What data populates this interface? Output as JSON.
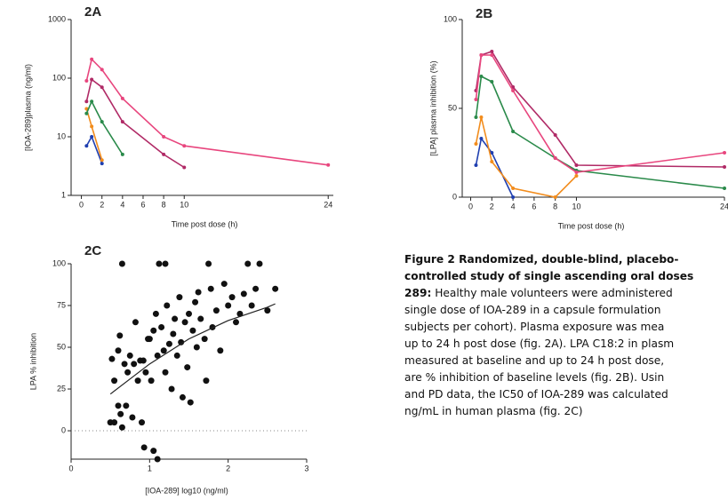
{
  "chart_data": [
    {
      "type": "line",
      "title": "2A",
      "xlabel": "Time post dose (h)",
      "ylabel": "[IOA-289]plasma (ng/ml)",
      "log_y": true,
      "xlim": [
        -1,
        24.5
      ],
      "ylim": [
        1,
        1000
      ],
      "xticks": [
        0,
        2,
        4,
        6,
        8,
        10,
        24
      ],
      "yticks": [
        1,
        10,
        100,
        1000
      ],
      "x": [
        0.5,
        1,
        2,
        4,
        8,
        10,
        24
      ],
      "series": [
        {
          "color": "#1f3fb0",
          "values": [
            7,
            10,
            3.5,
            null,
            null,
            null,
            null
          ]
        },
        {
          "color": "#f28c1c",
          "values": [
            30,
            15,
            4,
            null,
            null,
            null,
            null
          ]
        },
        {
          "color": "#2a8a4a",
          "values": [
            25,
            40,
            18,
            5,
            null,
            null,
            null
          ]
        },
        {
          "color": "#b02a66",
          "values": [
            40,
            95,
            70,
            18,
            5,
            3,
            null
          ]
        },
        {
          "color": "#e8467e",
          "values": [
            90,
            210,
            140,
            45,
            10,
            7,
            3.3
          ]
        }
      ]
    },
    {
      "type": "line",
      "title": "2B",
      "xlabel": "Time post dose (h)",
      "ylabel": "[LPA] plasma inhibition (%)",
      "log_y": false,
      "xlim": [
        -0.8,
        24
      ],
      "ylim": [
        0,
        100
      ],
      "xticks": [
        0,
        2,
        4,
        6,
        8,
        10,
        24
      ],
      "yticks": [
        0,
        50,
        100
      ],
      "x": [
        0.5,
        1,
        2,
        4,
        8,
        10,
        24
      ],
      "series": [
        {
          "color": "#1f3fb0",
          "values": [
            18,
            33,
            25,
            0,
            null,
            null,
            null
          ]
        },
        {
          "color": "#f28c1c",
          "values": [
            30,
            45,
            20,
            5,
            0,
            12,
            null
          ]
        },
        {
          "color": "#2a8a4a",
          "values": [
            45,
            68,
            65,
            37,
            22,
            15,
            5
          ]
        },
        {
          "color": "#b02a66",
          "values": [
            60,
            80,
            82,
            62,
            35,
            18,
            17
          ]
        },
        {
          "color": "#e8467e",
          "values": [
            55,
            80,
            80,
            60,
            22,
            14,
            25
          ]
        }
      ]
    },
    {
      "type": "scatter",
      "title": "2C",
      "xlabel": "[IOA-289] log10 (ng/ml)",
      "ylabel": "LPA % inhibition",
      "xlim": [
        0,
        3
      ],
      "ylim": [
        -17,
        100
      ],
      "xticks": [
        0,
        1,
        2,
        3
      ],
      "yticks": [
        0,
        25,
        50,
        75,
        100
      ],
      "color": "#111111",
      "x": [
        0.5,
        0.52,
        0.55,
        0.55,
        0.6,
        0.6,
        0.62,
        0.63,
        0.65,
        0.65,
        0.68,
        0.7,
        0.72,
        0.75,
        0.78,
        0.8,
        0.82,
        0.85,
        0.88,
        0.9,
        0.92,
        0.93,
        0.95,
        0.98,
        1.0,
        1.02,
        1.05,
        1.05,
        1.08,
        1.1,
        1.1,
        1.12,
        1.15,
        1.18,
        1.2,
        1.2,
        1.22,
        1.25,
        1.28,
        1.3,
        1.32,
        1.35,
        1.38,
        1.4,
        1.42,
        1.45,
        1.48,
        1.5,
        1.52,
        1.55,
        1.58,
        1.6,
        1.62,
        1.65,
        1.7,
        1.72,
        1.75,
        1.78,
        1.8,
        1.85,
        1.9,
        1.95,
        2.0,
        2.05,
        2.1,
        2.15,
        2.2,
        2.25,
        2.3,
        2.35,
        2.4,
        2.5,
        2.6
      ],
      "y": [
        5,
        43,
        30,
        5,
        48,
        15,
        57,
        10,
        2,
        100,
        40,
        15,
        35,
        45,
        8,
        40,
        65,
        30,
        42,
        5,
        42,
        -10,
        35,
        55,
        55,
        30,
        60,
        -12,
        70,
        -17,
        45,
        100,
        62,
        48,
        100,
        35,
        75,
        52,
        25,
        58,
        67,
        45,
        80,
        53,
        20,
        65,
        38,
        70,
        17,
        60,
        77,
        50,
        83,
        67,
        55,
        30,
        100,
        85,
        62,
        72,
        48,
        88,
        75,
        80,
        65,
        70,
        82,
        100,
        75,
        85,
        100,
        72,
        85
      ],
      "fit_x": [
        0.5,
        1,
        1.5,
        2,
        2.5,
        2.6
      ],
      "fit_y": [
        22,
        40,
        55,
        66,
        74,
        76
      ]
    }
  ],
  "caption": {
    "heading": [
      "Figure 2 Randomized, double-blind, placebo-",
      "controlled study of single ascending oral doses",
      "289:"
    ],
    "body": [
      "Healthy male volunteers were administered",
      "single dose of IOA-289 in a capsule formulation",
      "subjects per cohort). Plasma exposure was mea",
      "up to 24 h post dose (fig. 2A). LPA C18:2 in plasm",
      "measured at baseline and up to 24 h post dose,",
      "are % inhibition of baseline levels (fig. 2B). Usin",
      "and PD data, the IC50 of IOA-289 was calculated",
      "ng/mL in human plasma (fig. 2C)"
    ]
  }
}
